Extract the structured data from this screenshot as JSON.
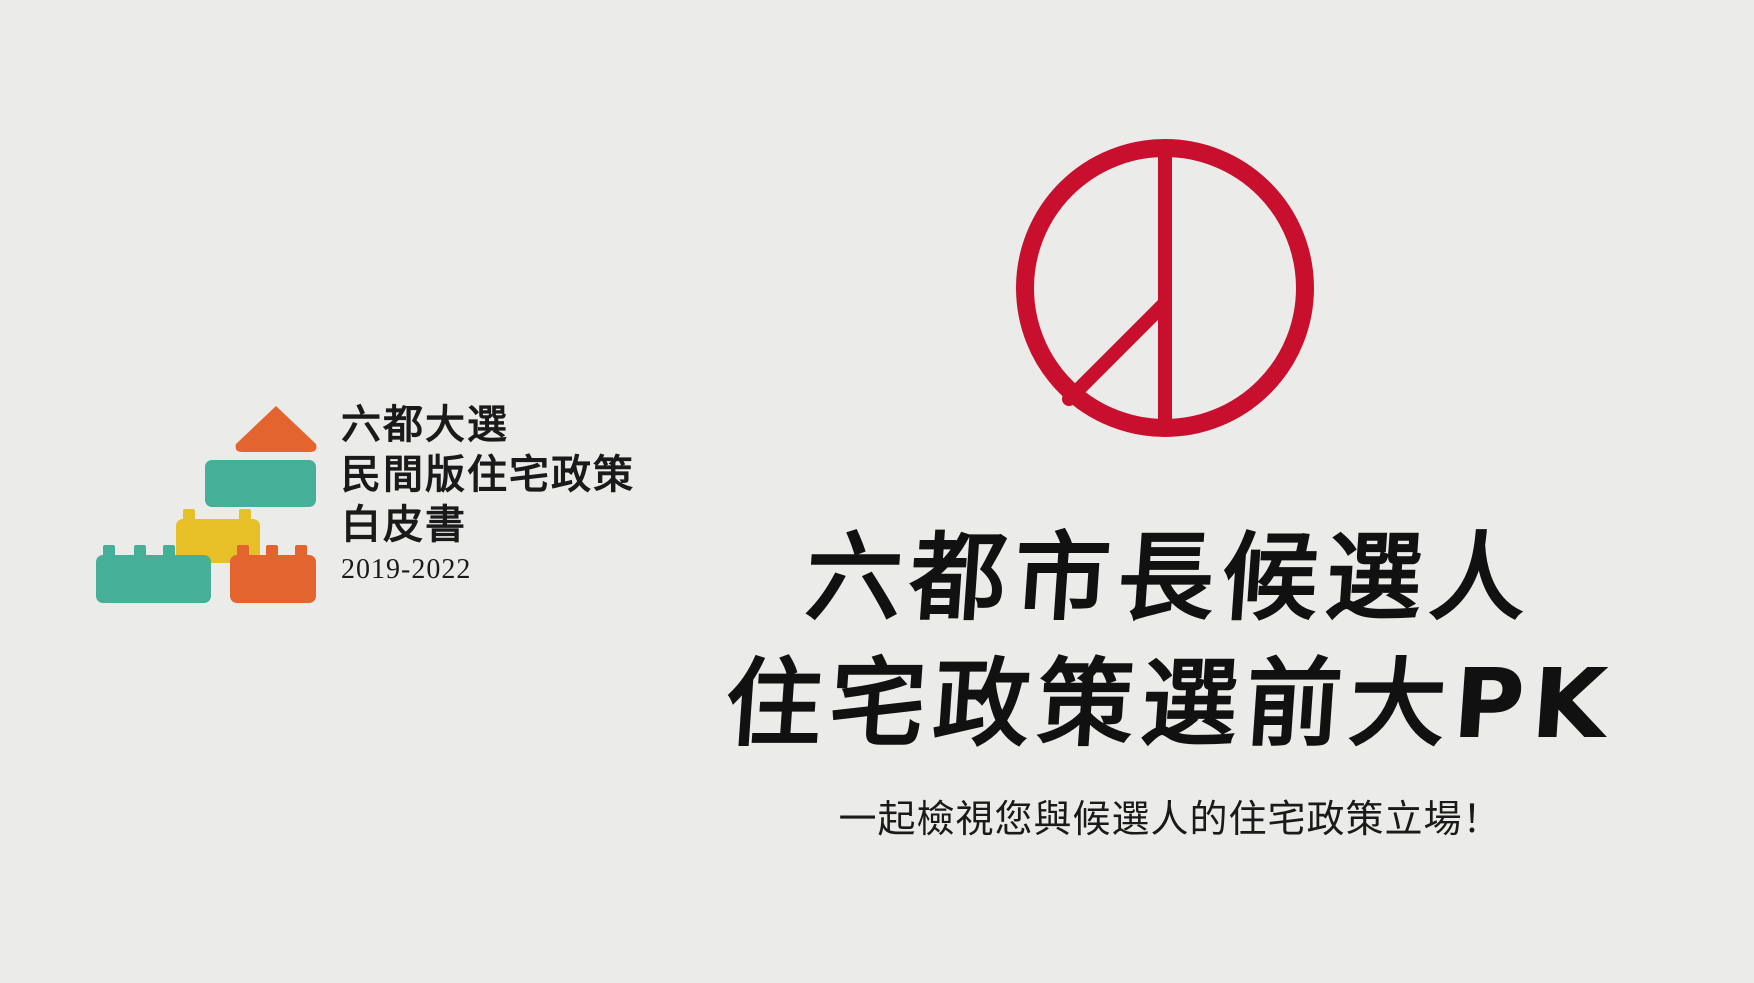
{
  "logo": {
    "line1": "六都大選",
    "line2": "民間版住宅政策",
    "line3": "白皮書",
    "year": "2019-2022",
    "colors": {
      "orange": "#e4642f",
      "teal": "#45b097",
      "yellow": "#e7c028"
    }
  },
  "vote_mark": {
    "icon": "vote-stamp-icon",
    "color": "#c8102e"
  },
  "headline": {
    "line1": "六都市長候選人",
    "line2": "住宅政策選前大PK"
  },
  "subtitle": "一起檢視您與候選人的住宅政策立場！"
}
